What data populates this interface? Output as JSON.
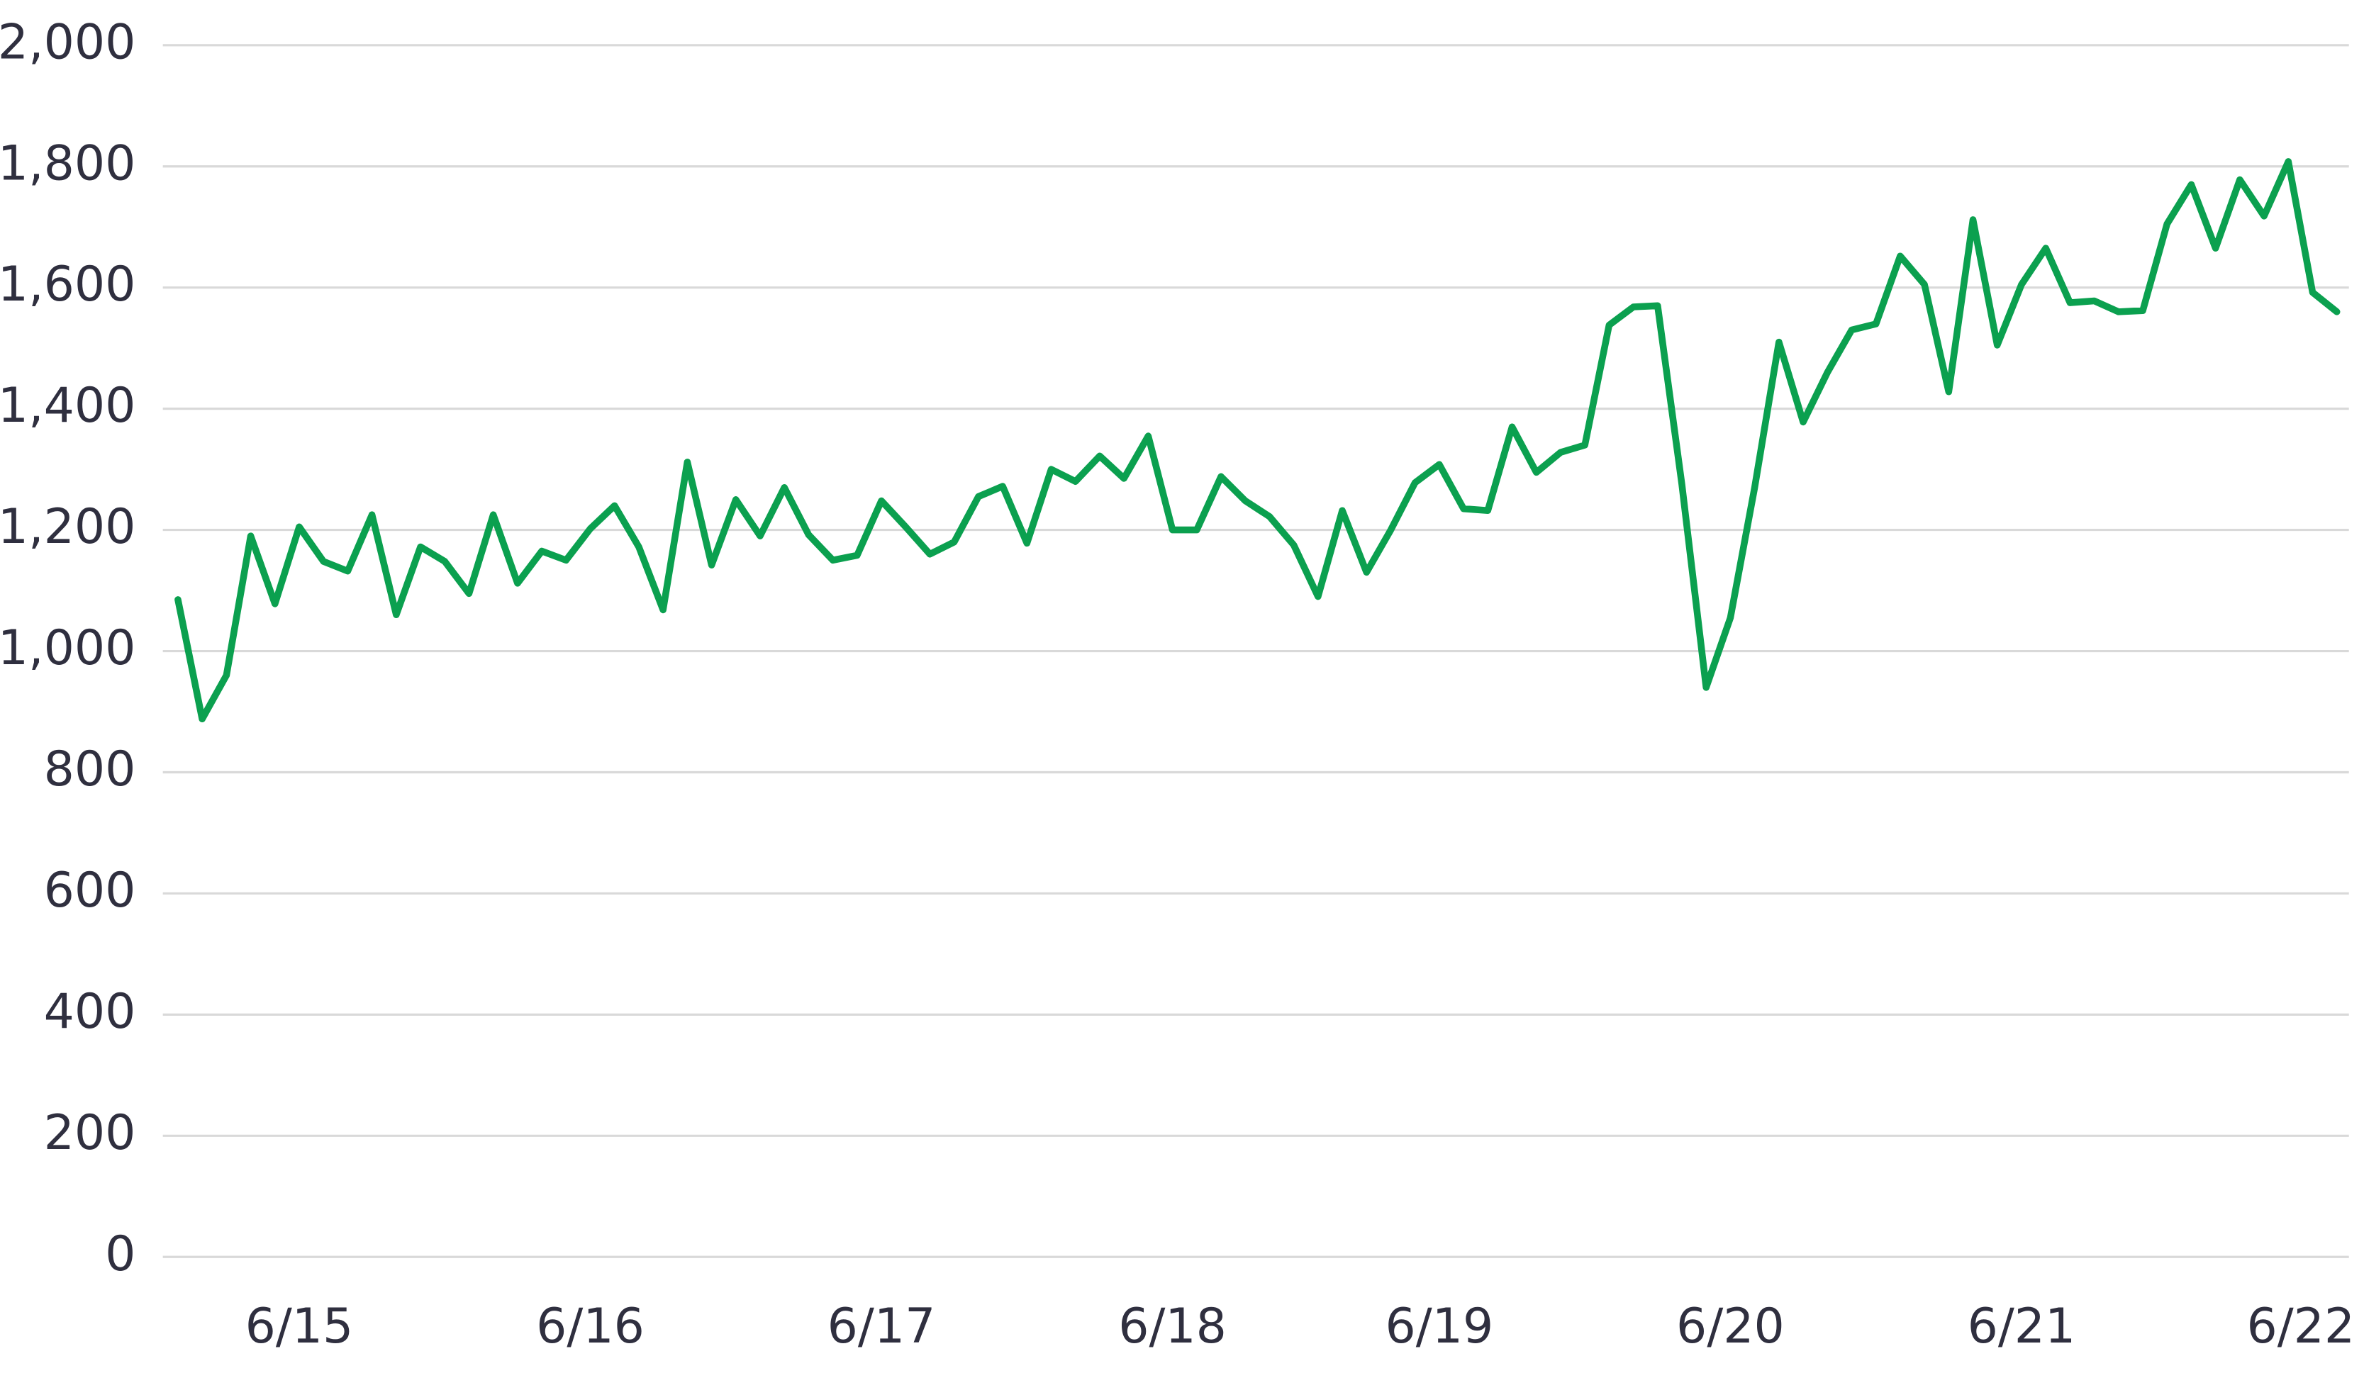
{
  "chart_data": {
    "type": "line",
    "categories": [
      null,
      null,
      null,
      null,
      null,
      "6/15",
      null,
      null,
      null,
      null,
      null,
      null,
      null,
      null,
      null,
      null,
      null,
      "6/16",
      null,
      null,
      null,
      null,
      null,
      null,
      null,
      null,
      null,
      null,
      null,
      "6/17",
      null,
      null,
      null,
      null,
      null,
      null,
      null,
      null,
      null,
      null,
      null,
      "6/18",
      null,
      null,
      null,
      null,
      null,
      null,
      null,
      null,
      null,
      null,
      "6/19",
      null,
      null,
      null,
      null,
      null,
      null,
      null,
      null,
      null,
      null,
      null,
      "6/20",
      null,
      null,
      null,
      null,
      null,
      null,
      null,
      null,
      null,
      null,
      null,
      "6/21",
      null,
      null,
      null,
      null,
      null,
      null,
      null,
      null,
      null,
      null,
      null,
      "6/22",
      null
    ],
    "values": [
      1085,
      888,
      960,
      1190,
      1078,
      1205,
      1148,
      1132,
      1225,
      1060,
      1172,
      1148,
      1095,
      1225,
      1112,
      1165,
      1150,
      1202,
      1240,
      1172,
      1068,
      1312,
      1142,
      1250,
      1190,
      1270,
      1192,
      1150,
      1158,
      1248,
      1205,
      1160,
      1180,
      1255,
      1272,
      1178,
      1300,
      1280,
      1322,
      1285,
      1355,
      1200,
      1200,
      1288,
      1248,
      1222,
      1175,
      1090,
      1232,
      1130,
      1200,
      1278,
      1308,
      1235,
      1232,
      1370,
      1295,
      1328,
      1340,
      1538,
      1568,
      1570,
      1275,
      940,
      1055,
      1270,
      1510,
      1378,
      1460,
      1530,
      1540,
      1652,
      1605,
      1428,
      1712,
      1505,
      1605,
      1665,
      1575,
      1578,
      1560,
      1562,
      1705,
      1770,
      1665,
      1778,
      1718,
      1808,
      1592,
      1560
    ],
    "color": "#0ba04f",
    "ylim": [
      0,
      2000
    ],
    "yticks": [
      0,
      200,
      400,
      600,
      800,
      {
        "value": 1000,
        "label": "1,000"
      },
      {
        "value": 1200,
        "label": "1,200"
      },
      {
        "value": 1400,
        "label": "1,400"
      },
      {
        "value": 1600,
        "label": "1,600"
      },
      {
        "value": 1800,
        "label": "1,800"
      },
      {
        "value": 2000,
        "label": "2,000"
      }
    ],
    "grid": true
  }
}
